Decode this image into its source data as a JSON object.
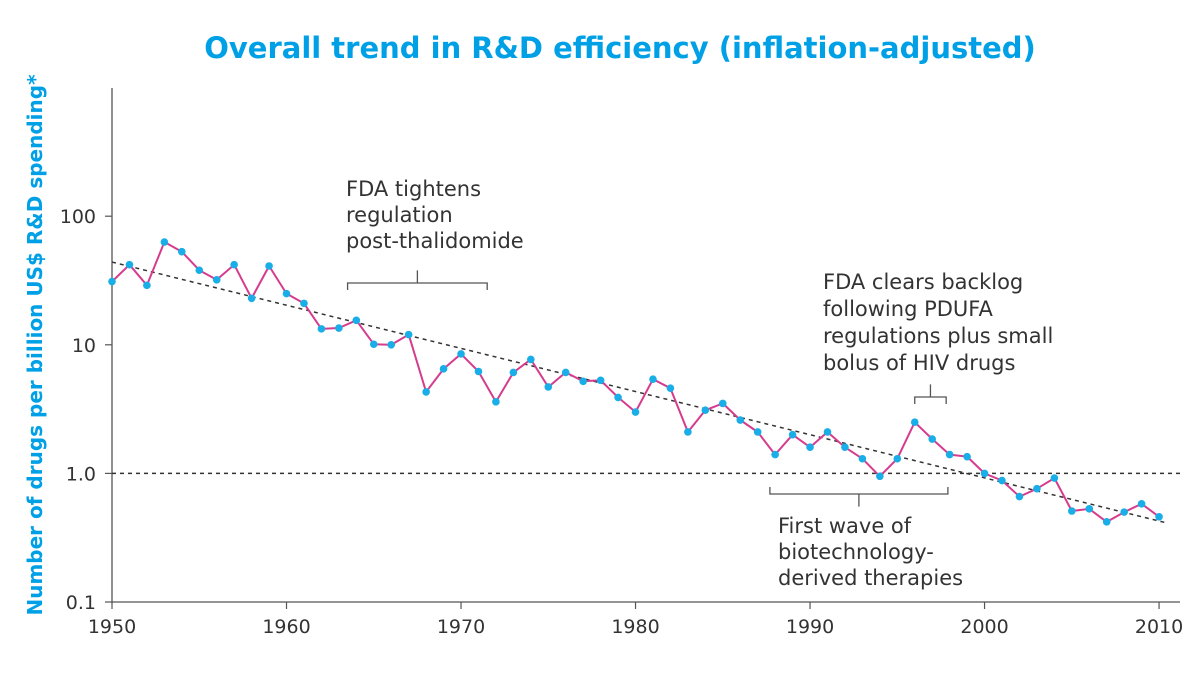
{
  "colors": {
    "title": "#00a0e6",
    "ylabel": "#00a0e6",
    "line": "#d63c8e",
    "marker": "#1aaee8",
    "axis": "#555555",
    "reference": "#333333",
    "annotation": "#333333"
  },
  "chart_data": {
    "type": "line",
    "title": "Overall trend in R&D efficiency (inflation-adjusted)",
    "xlabel": "",
    "ylabel": "Number of drugs per billion US$ R&D spending*",
    "yscale": "log",
    "xlim": [
      1950,
      2011.2
    ],
    "ylim": [
      0.1,
      1000
    ],
    "x_ticks": [
      1950,
      1960,
      1970,
      1980,
      1990,
      2000,
      2010
    ],
    "y_ticks": [
      {
        "value": 0.1,
        "label": "0.1"
      },
      {
        "value": 1,
        "label": "1.0"
      },
      {
        "value": 10,
        "label": "10"
      },
      {
        "value": 100,
        "label": "100"
      }
    ],
    "grid": false,
    "legend": "none",
    "series": [
      {
        "x": [
          1950,
          1951,
          1952,
          1953,
          1954,
          1955,
          1956,
          1957,
          1958,
          1959,
          1960,
          1961,
          1962,
          1963,
          1964,
          1965,
          1966,
          1967,
          1968,
          1969,
          1970,
          1971,
          1972,
          1973,
          1974,
          1975,
          1976,
          1977,
          1978,
          1979,
          1980,
          1981,
          1982,
          1983,
          1984,
          1985,
          1986,
          1987,
          1988,
          1989,
          1990,
          1991,
          1992,
          1993,
          1994,
          1995,
          1996,
          1997,
          1998,
          1999,
          2000,
          2001,
          2002,
          2003,
          2004,
          2005,
          2006,
          2007,
          2008,
          2009,
          2010
        ],
        "values": [
          31,
          42,
          29,
          63,
          53,
          38,
          32,
          42,
          23,
          41,
          25,
          21,
          13.3,
          13.5,
          15.5,
          10.1,
          10,
          12,
          4.3,
          6.5,
          8.5,
          6.2,
          3.6,
          6.1,
          7.7,
          4.7,
          6.1,
          5.2,
          5.3,
          3.9,
          3,
          5.4,
          4.6,
          2.1,
          3.1,
          3.5,
          2.6,
          2.1,
          1.4,
          2,
          1.6,
          2.1,
          1.6,
          1.3,
          0.95,
          1.3,
          2.5,
          1.85,
          1.4,
          1.35,
          1,
          0.88,
          0.66,
          0.76,
          0.92,
          0.51,
          0.53,
          0.42,
          0.5,
          0.58,
          0.46
        ]
      }
    ],
    "trendline": {
      "x": [
        1950,
        2010.5
      ],
      "y": [
        44,
        0.41
      ]
    },
    "reference_line": {
      "y": 1
    },
    "annotations": [
      {
        "lines": [
          "FDA tightens",
          "regulation",
          "post-thalidomide"
        ],
        "bracket": [
          1963.5,
          1971.5
        ]
      },
      {
        "lines": [
          "FDA clears backlog",
          "following PDUFA",
          "regulations plus small",
          "bolus of HIV drugs"
        ],
        "bracket": [
          1996,
          1997.8
        ]
      },
      {
        "lines": [
          "First wave of",
          "biotechnology-",
          "derived therapies"
        ],
        "bracket": [
          1987.7,
          1997.9
        ]
      }
    ]
  }
}
